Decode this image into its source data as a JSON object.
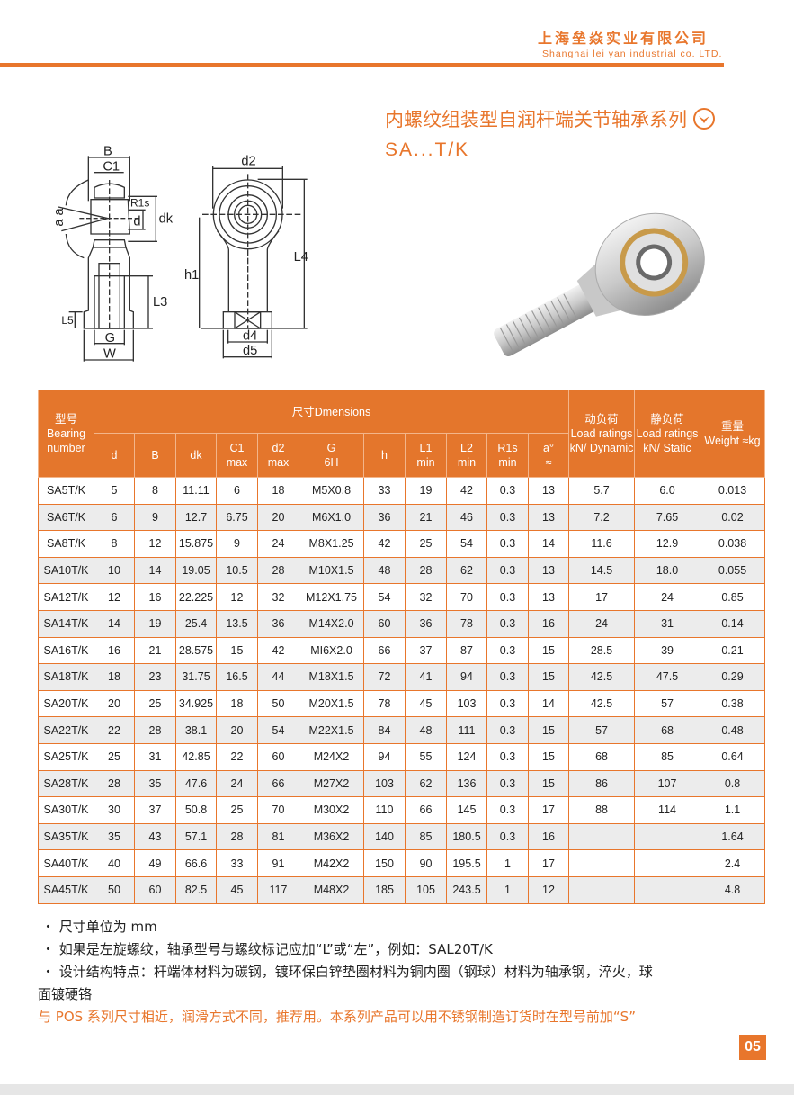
{
  "header": {
    "company_cn": "上海垒焱实业有限公司",
    "company_en": "Shanghai lei yan industrial co. LTD."
  },
  "title": {
    "cn": "内螺纹组装型自润杆端关节轴承系列",
    "series": "SA...T/K",
    "icon": "circle-chevron-down-icon"
  },
  "drawing_labels": {
    "B": "B",
    "C1": "C1",
    "R1s": "R1s",
    "d": "d",
    "dk": "dk",
    "aa": "a a",
    "L3": "L3",
    "L5": "L5",
    "G": "G",
    "W": "W",
    "d2": "d2",
    "h1": "h1",
    "L4": "L4",
    "d4": "d4",
    "d5": "d5"
  },
  "table": {
    "header": {
      "model_cn": "型号",
      "model_en1": "Bearing",
      "model_en2": "number",
      "dimensions": "尺寸Dmensions",
      "dyn_cn": "动负荷",
      "dyn_en": "Load ratings kN/ Dynamic",
      "sta_cn": "静负荷",
      "sta_en": "Load ratings kN/ Static",
      "wt_cn": "重量",
      "wt_en": "Weight ≈kg",
      "cols": [
        "d",
        "B",
        "dk",
        "C1 max",
        "d2 max",
        "G 6H",
        "h",
        "L1 min",
        "L2 min",
        "R1s min",
        "a° ≈"
      ]
    },
    "rows": [
      [
        "SA5T/K",
        "5",
        "8",
        "11.11",
        "6",
        "18",
        "M5X0.8",
        "33",
        "19",
        "42",
        "0.3",
        "13",
        "5.7",
        "6.0",
        "0.013"
      ],
      [
        "SA6T/K",
        "6",
        "9",
        "12.7",
        "6.75",
        "20",
        "M6X1.0",
        "36",
        "21",
        "46",
        "0.3",
        "13",
        "7.2",
        "7.65",
        "0.02"
      ],
      [
        "SA8T/K",
        "8",
        "12",
        "15.875",
        "9",
        "24",
        "M8X1.25",
        "42",
        "25",
        "54",
        "0.3",
        "14",
        "11.6",
        "12.9",
        "0.038"
      ],
      [
        "SA10T/K",
        "10",
        "14",
        "19.05",
        "10.5",
        "28",
        "M10X1.5",
        "48",
        "28",
        "62",
        "0.3",
        "13",
        "14.5",
        "18.0",
        "0.055"
      ],
      [
        "SA12T/K",
        "12",
        "16",
        "22.225",
        "12",
        "32",
        "M12X1.75",
        "54",
        "32",
        "70",
        "0.3",
        "13",
        "17",
        "24",
        "0.85"
      ],
      [
        "SA14T/K",
        "14",
        "19",
        "25.4",
        "13.5",
        "36",
        "M14X2.0",
        "60",
        "36",
        "78",
        "0.3",
        "16",
        "24",
        "31",
        "0.14"
      ],
      [
        "SA16T/K",
        "16",
        "21",
        "28.575",
        "15",
        "42",
        "MI6X2.0",
        "66",
        "37",
        "87",
        "0.3",
        "15",
        "28.5",
        "39",
        "0.21"
      ],
      [
        "SA18T/K",
        "18",
        "23",
        "31.75",
        "16.5",
        "44",
        "M18X1.5",
        "72",
        "41",
        "94",
        "0.3",
        "15",
        "42.5",
        "47.5",
        "0.29"
      ],
      [
        "SA20T/K",
        "20",
        "25",
        "34.925",
        "18",
        "50",
        "M20X1.5",
        "78",
        "45",
        "103",
        "0.3",
        "14",
        "42.5",
        "57",
        "0.38"
      ],
      [
        "SA22T/K",
        "22",
        "28",
        "38.1",
        "20",
        "54",
        "M22X1.5",
        "84",
        "48",
        "111",
        "0.3",
        "15",
        "57",
        "68",
        "0.48"
      ],
      [
        "SA25T/K",
        "25",
        "31",
        "42.85",
        "22",
        "60",
        "M24X2",
        "94",
        "55",
        "124",
        "0.3",
        "15",
        "68",
        "85",
        "0.64"
      ],
      [
        "SA28T/K",
        "28",
        "35",
        "47.6",
        "24",
        "66",
        "M27X2",
        "103",
        "62",
        "136",
        "0.3",
        "15",
        "86",
        "107",
        "0.8"
      ],
      [
        "SA30T/K",
        "30",
        "37",
        "50.8",
        "25",
        "70",
        "M30X2",
        "110",
        "66",
        "145",
        "0.3",
        "17",
        "88",
        "114",
        "1.1"
      ],
      [
        "SA35T/K",
        "35",
        "43",
        "57.1",
        "28",
        "81",
        "M36X2",
        "140",
        "85",
        "180.5",
        "0.3",
        "16",
        "",
        "",
        "1.64"
      ],
      [
        "SA40T/K",
        "40",
        "49",
        "66.6",
        "33",
        "91",
        "M42X2",
        "150",
        "90",
        "195.5",
        "1",
        "17",
        "",
        "",
        "2.4"
      ],
      [
        "SA45T/K",
        "50",
        "60",
        "82.5",
        "45",
        "117",
        "M48X2",
        "185",
        "105",
        "243.5",
        "1",
        "12",
        "",
        "",
        "4.8"
      ]
    ]
  },
  "notes": [
    "・ 尺寸单位为 mm",
    "・ 如果是左旋螺纹，轴承型号与螺纹标记应加“L”或“左”，例如：SAL20T/K",
    "・  设计结构特点：杆端体材料为碳钢，镀环保白锌垫圈材料为铜内圈（钢球）材料为轴承钢，淬火，球",
    "面镀硬铬"
  ],
  "highlight_note": "与 POS 系列尺寸相近，润滑方式不同，推荐用。本系列产品可以用不锈钢制造订货时在型号前加“S”",
  "page_number": "05",
  "colors": {
    "accent": "#e8762c",
    "row_alt": "#ececec"
  }
}
